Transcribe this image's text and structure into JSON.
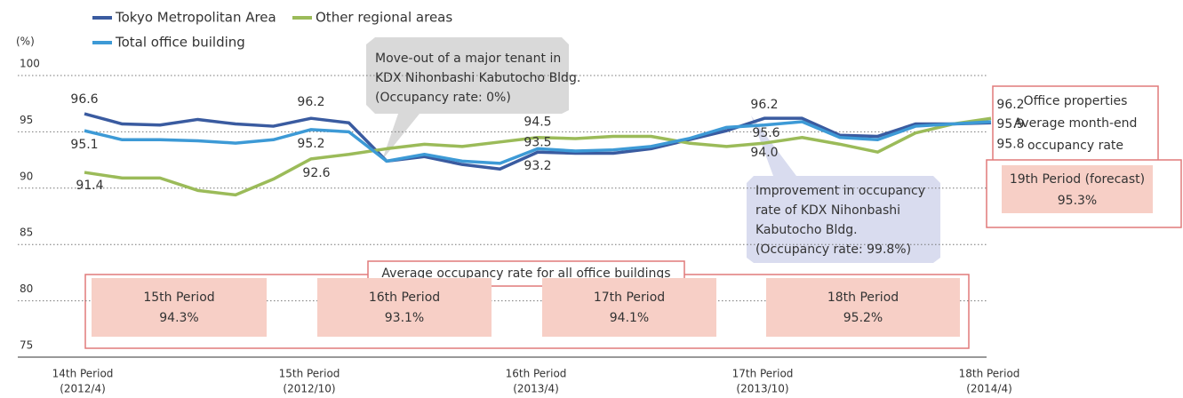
{
  "chart_data": {
    "type": "line",
    "y_unit": "(%)",
    "categories": [
      "(2012/4)",
      null,
      null,
      null,
      null,
      null,
      "(2012/10)",
      null,
      null,
      null,
      null,
      null,
      "(2013/4)",
      null,
      null,
      null,
      null,
      null,
      "(2013/10)",
      null,
      null,
      null,
      null,
      null,
      "(2014/4)"
    ],
    "period_names": [
      "14th Period",
      "15th Period",
      "16th Period",
      "17th Period",
      "18th Period"
    ],
    "ylim": [
      75,
      100
    ],
    "yticks": [
      75,
      80,
      85,
      90,
      95,
      100
    ],
    "grid": true,
    "legend": "top-left",
    "series": [
      {
        "name": "Tokyo Metropolitan Area",
        "color": "#3a5ba0",
        "values": [
          96.6,
          95.7,
          95.6,
          96.1,
          95.7,
          95.5,
          96.2,
          95.8,
          92.4,
          92.8,
          92.1,
          91.7,
          93.2,
          93.1,
          93.1,
          93.5,
          94.3,
          95.1,
          96.2,
          96.2,
          94.7,
          94.6,
          95.7,
          95.7,
          95.8
        ],
        "value_labels": [
          "96.6",
          null,
          null,
          null,
          null,
          null,
          "96.2",
          null,
          null,
          null,
          null,
          null,
          "93.2",
          null,
          null,
          null,
          null,
          null,
          "96.2",
          null,
          null,
          null,
          null,
          null,
          "95.8"
        ]
      },
      {
        "name": "Other regional areas",
        "color": "#9bbb59",
        "values": [
          91.4,
          90.9,
          90.9,
          89.8,
          89.4,
          90.8,
          92.6,
          93.0,
          93.5,
          93.9,
          93.7,
          94.1,
          94.5,
          94.4,
          94.6,
          94.6,
          94.0,
          93.7,
          94.0,
          94.5,
          93.9,
          93.2,
          94.9,
          95.7,
          96.2
        ],
        "value_labels": [
          "91.4",
          null,
          null,
          null,
          null,
          null,
          "92.6",
          null,
          null,
          null,
          null,
          null,
          "94.5",
          null,
          null,
          null,
          null,
          null,
          "94.0",
          null,
          null,
          null,
          null,
          null,
          "96.2"
        ]
      },
      {
        "name": "Total office building",
        "color": "#3d9ad6",
        "values": [
          95.1,
          94.3,
          94.3,
          94.2,
          94.0,
          94.3,
          95.2,
          95.0,
          92.4,
          93.0,
          92.4,
          92.2,
          93.5,
          93.3,
          93.4,
          93.7,
          94.4,
          95.4,
          95.6,
          95.9,
          94.5,
          94.3,
          95.5,
          95.7,
          95.9
        ],
        "value_labels": [
          "95.1",
          null,
          null,
          null,
          null,
          null,
          "95.2",
          null,
          null,
          null,
          null,
          null,
          "93.5",
          null,
          null,
          null,
          null,
          null,
          "95.6",
          null,
          null,
          null,
          null,
          null,
          "95.9"
        ]
      }
    ],
    "callouts": [
      {
        "lines": [
          "Move-out of a major tenant in",
          "KDX Nihonbashi Kabutocho Bldg.",
          "(Occupancy rate: 0%)"
        ]
      },
      {
        "lines": [
          "Improvement in occupancy",
          "rate of KDX Nihonbashi",
          "Kabutocho Bldg.",
          "(Occupancy rate: 99.8%)"
        ]
      }
    ],
    "forecast_box": {
      "title_lines": [
        "Office properties",
        "Average month-end",
        "occupancy rate"
      ],
      "name": "19th Period (forecast)",
      "rate": "95.3%"
    },
    "averages_box": {
      "title": "Average occupancy rate for all office buildings",
      "periods": [
        {
          "name": "15th Period",
          "rate": "94.3%"
        },
        {
          "name": "16th Period",
          "rate": "93.1%"
        },
        {
          "name": "17th Period",
          "rate": "94.1%"
        },
        {
          "name": "18th Period",
          "rate": "95.2%"
        }
      ]
    }
  }
}
